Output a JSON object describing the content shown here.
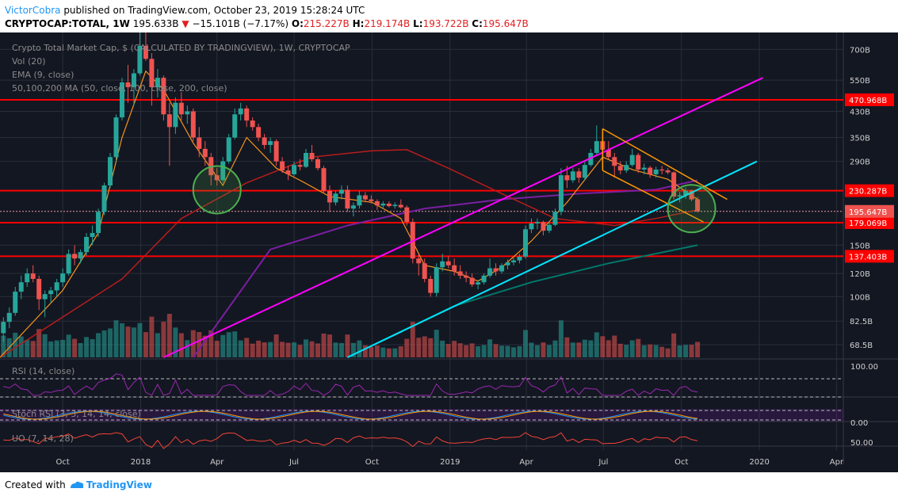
{
  "header": {
    "author": "VictorCobra",
    "published": "published on TradingView.com, October 23, 2019 15:28:24 UTC",
    "symbol": "CRYPTOCAP:TOTAL, 1W",
    "price": "195.633B",
    "change_arrow": "▼",
    "change": "−15.101B (−7.17%)",
    "o_label": "O:",
    "o_val": "215.227B",
    "h_label": "H:",
    "h_val": "219.174B",
    "l_label": "L:",
    "l_val": "193.722B",
    "c_label": "C:",
    "c_val": "195.647B"
  },
  "footer": {
    "created_with": "Created with",
    "brand": "TradingView"
  },
  "colors": {
    "background": "#131722",
    "up": "#26a69a",
    "down": "#ef5350",
    "ema": "#f7931a",
    "ma50": "#b71c1c",
    "ma100": "#7b1fa2",
    "ma200": "#00796b",
    "level": "#ff0000",
    "upper_trend": "#ff00ff",
    "lower_trend": "#00e5ff",
    "wedge": "#ff9800",
    "circle": "#4caf50"
  },
  "chart_data": [
    {
      "type": "candlestick",
      "title": "Crypto Total Market Cap, $ (CALCULATED BY TRADINGVIEW), 1W, CRYPTOCAP",
      "scale": "log",
      "ylim": [
        62,
        800
      ],
      "y_ticks": [
        "700B",
        "550B",
        "430B",
        "350B",
        "290B",
        "150B",
        "120B",
        "100B",
        "82.5B",
        "68.5B"
      ],
      "x_ticks": [
        "Oct",
        "2018",
        "Apr",
        "Jul",
        "Oct",
        "2019",
        "Apr",
        "Jul",
        "Oct",
        "2020",
        "Apr"
      ],
      "x_tick_dates": [
        "2017-10-01",
        "2018-01-01",
        "2018-04-01",
        "2018-07-01",
        "2018-10-01",
        "2019-01-01",
        "2019-04-01",
        "2019-07-01",
        "2019-10-01",
        "2020-01-01",
        "2020-04-01"
      ],
      "x_range": [
        "2017-07-19",
        "2020-04-09"
      ],
      "indicators": [
        "Vol (20)",
        "EMA (9, close)",
        "50,100,200 MA (50, close, 100, close, 200, close)"
      ],
      "horizontal_levels": [
        {
          "label": "470.968B",
          "value": 470.968
        },
        {
          "label": "230.287B",
          "value": 230.287
        },
        {
          "label": "179.069B",
          "value": 179.069
        },
        {
          "label": "137.403B",
          "value": 137.403
        }
      ],
      "last_price": {
        "label": "195.647B",
        "value": 195.647
      },
      "ema_points": [
        [
          "2017-07-19",
          62
        ],
        [
          "2017-10-01",
          105
        ],
        [
          "2017-11-12",
          165
        ],
        [
          "2017-12-10",
          350
        ],
        [
          "2018-01-07",
          590
        ],
        [
          "2018-01-28",
          510
        ],
        [
          "2018-03-04",
          335
        ],
        [
          "2018-04-08",
          240
        ],
        [
          "2018-05-06",
          350
        ],
        [
          "2018-06-10",
          275
        ],
        [
          "2018-07-08",
          250
        ],
        [
          "2018-08-12",
          220
        ],
        [
          "2018-10-01",
          210
        ],
        [
          "2018-11-04",
          185
        ],
        [
          "2018-12-02",
          128
        ],
        [
          "2019-01-06",
          122
        ],
        [
          "2019-02-03",
          113
        ],
        [
          "2019-03-03",
          126
        ],
        [
          "2019-04-07",
          155
        ],
        [
          "2019-05-19",
          210
        ],
        [
          "2019-06-30",
          300
        ],
        [
          "2019-08-04",
          272
        ],
        [
          "2019-09-15",
          252
        ],
        [
          "2019-10-20",
          215
        ]
      ],
      "ma50_points": [
        [
          "2017-07-19",
          62
        ],
        [
          "2017-12-10",
          115
        ],
        [
          "2018-02-18",
          185
        ],
        [
          "2018-05-06",
          245
        ],
        [
          "2018-07-22",
          300
        ],
        [
          "2018-09-30",
          315
        ],
        [
          "2018-11-11",
          318
        ],
        [
          "2018-12-30",
          275
        ],
        [
          "2019-03-03",
          225
        ],
        [
          "2019-05-05",
          185
        ],
        [
          "2019-07-14",
          175
        ],
        [
          "2019-09-01",
          185
        ],
        [
          "2019-10-20",
          198
        ]
      ],
      "ma100_points": [
        [
          "2018-03-04",
          62
        ],
        [
          "2018-06-03",
          145
        ],
        [
          "2018-09-02",
          175
        ],
        [
          "2018-12-02",
          200
        ],
        [
          "2019-03-03",
          215
        ],
        [
          "2019-06-02",
          225
        ],
        [
          "2019-09-01",
          232
        ],
        [
          "2019-10-20",
          250
        ]
      ],
      "ma200_points": [
        [
          "2018-09-02",
          62
        ],
        [
          "2018-11-04",
          76
        ],
        [
          "2019-01-06",
          93
        ],
        [
          "2019-04-07",
          112
        ],
        [
          "2019-07-07",
          130
        ],
        [
          "2019-10-20",
          150
        ]
      ],
      "trendlines": [
        {
          "name": "upper channel",
          "from": [
            "2018-01-28",
            62
          ],
          "to": [
            "2020-01-05",
            560
          ]
        },
        {
          "name": "lower channel",
          "from": [
            "2018-09-02",
            62
          ],
          "to": [
            "2019-12-29",
            290
          ]
        }
      ],
      "falling_wedge": {
        "upper": [
          [
            "2019-06-30",
            375
          ],
          [
            "2019-11-24",
            215
          ]
        ],
        "lower": [
          [
            "2019-06-30",
            270
          ],
          [
            "2019-10-27",
            180
          ]
        ]
      },
      "highlights": [
        {
          "center": [
            "2018-04-01",
            232
          ]
        },
        {
          "center": [
            "2019-10-13",
            200
          ]
        }
      ],
      "candles": [
        [
          "2017-07-23",
          75,
          85,
          70,
          82
        ],
        [
          "2017-07-30",
          82,
          92,
          78,
          88
        ],
        [
          "2017-08-06",
          88,
          108,
          86,
          104
        ],
        [
          "2017-08-13",
          104,
          118,
          98,
          112
        ],
        [
          "2017-08-20",
          112,
          125,
          108,
          120
        ],
        [
          "2017-08-27",
          120,
          128,
          112,
          115
        ],
        [
          "2017-09-03",
          115,
          118,
          90,
          98
        ],
        [
          "2017-09-10",
          98,
          105,
          85,
          102
        ],
        [
          "2017-09-17",
          102,
          108,
          95,
          105
        ],
        [
          "2017-09-24",
          105,
          115,
          100,
          112
        ],
        [
          "2017-10-01",
          112,
          125,
          108,
          120
        ],
        [
          "2017-10-08",
          120,
          145,
          118,
          140
        ],
        [
          "2017-10-15",
          140,
          150,
          128,
          135
        ],
        [
          "2017-10-22",
          135,
          145,
          130,
          142
        ],
        [
          "2017-10-29",
          142,
          165,
          138,
          160
        ],
        [
          "2017-11-05",
          160,
          175,
          150,
          165
        ],
        [
          "2017-11-12",
          165,
          200,
          160,
          195
        ],
        [
          "2017-11-19",
          195,
          245,
          190,
          240
        ],
        [
          "2017-11-26",
          240,
          310,
          235,
          300
        ],
        [
          "2017-12-03",
          300,
          420,
          290,
          410
        ],
        [
          "2017-12-10",
          410,
          560,
          400,
          540
        ],
        [
          "2017-12-17",
          540,
          620,
          460,
          520
        ],
        [
          "2017-12-24",
          520,
          600,
          450,
          580
        ],
        [
          "2017-12-31",
          580,
          800,
          570,
          720
        ],
        [
          "2018-01-07",
          720,
          810,
          640,
          650
        ],
        [
          "2018-01-14",
          650,
          680,
          450,
          520
        ],
        [
          "2018-01-21",
          520,
          600,
          480,
          560
        ],
        [
          "2018-01-28",
          560,
          570,
          400,
          420
        ],
        [
          "2018-02-04",
          420,
          460,
          280,
          380
        ],
        [
          "2018-02-11",
          380,
          480,
          360,
          460
        ],
        [
          "2018-02-18",
          460,
          500,
          400,
          420
        ],
        [
          "2018-02-25",
          420,
          450,
          390,
          430
        ],
        [
          "2018-03-04",
          430,
          440,
          340,
          350
        ],
        [
          "2018-03-11",
          350,
          380,
          300,
          320
        ],
        [
          "2018-03-18",
          320,
          340,
          280,
          300
        ],
        [
          "2018-03-25",
          300,
          310,
          240,
          260
        ],
        [
          "2018-04-01",
          260,
          275,
          240,
          250
        ],
        [
          "2018-04-08",
          250,
          300,
          245,
          290
        ],
        [
          "2018-04-15",
          290,
          360,
          285,
          350
        ],
        [
          "2018-04-22",
          350,
          440,
          345,
          420
        ],
        [
          "2018-04-29",
          420,
          460,
          400,
          440
        ],
        [
          "2018-05-06",
          440,
          450,
          380,
          400
        ],
        [
          "2018-05-13",
          400,
          410,
          370,
          380
        ],
        [
          "2018-05-20",
          380,
          390,
          340,
          350
        ],
        [
          "2018-05-27",
          350,
          360,
          320,
          330
        ],
        [
          "2018-06-03",
          330,
          350,
          310,
          340
        ],
        [
          "2018-06-10",
          340,
          345,
          280,
          290
        ],
        [
          "2018-06-17",
          290,
          300,
          265,
          270
        ],
        [
          "2018-06-24",
          270,
          280,
          250,
          262
        ],
        [
          "2018-07-01",
          262,
          290,
          258,
          282
        ],
        [
          "2018-07-08",
          282,
          295,
          270,
          278
        ],
        [
          "2018-07-15",
          278,
          320,
          275,
          310
        ],
        [
          "2018-07-22",
          310,
          330,
          290,
          295
        ],
        [
          "2018-07-29",
          295,
          300,
          270,
          275
        ],
        [
          "2018-08-05",
          275,
          280,
          225,
          230
        ],
        [
          "2018-08-12",
          230,
          240,
          195,
          210
        ],
        [
          "2018-08-19",
          210,
          230,
          205,
          225
        ],
        [
          "2018-08-26",
          225,
          240,
          215,
          232
        ],
        [
          "2018-09-02",
          232,
          240,
          195,
          200
        ],
        [
          "2018-09-09",
          200,
          210,
          188,
          205
        ],
        [
          "2018-09-16",
          205,
          230,
          200,
          222
        ],
        [
          "2018-09-23",
          222,
          228,
          210,
          215
        ],
        [
          "2018-09-30",
          215,
          222,
          208,
          212
        ],
        [
          "2018-10-07",
          212,
          215,
          198,
          205
        ],
        [
          "2018-10-14",
          205,
          212,
          200,
          208
        ],
        [
          "2018-10-21",
          208,
          212,
          202,
          204
        ],
        [
          "2018-10-28",
          204,
          210,
          200,
          206
        ],
        [
          "2018-11-04",
          206,
          215,
          200,
          202
        ],
        [
          "2018-11-11",
          202,
          205,
          175,
          180
        ],
        [
          "2018-11-18",
          180,
          185,
          130,
          135
        ],
        [
          "2018-11-25",
          135,
          140,
          118,
          130
        ],
        [
          "2018-12-02",
          130,
          135,
          112,
          115
        ],
        [
          "2018-12-09",
          115,
          118,
          100,
          103
        ],
        [
          "2018-12-16",
          103,
          130,
          100,
          126
        ],
        [
          "2018-12-23",
          126,
          140,
          122,
          132
        ],
        [
          "2018-12-30",
          132,
          138,
          125,
          128
        ],
        [
          "2019-01-06",
          128,
          135,
          118,
          122
        ],
        [
          "2019-01-13",
          122,
          128,
          115,
          118
        ],
        [
          "2019-01-20",
          118,
          122,
          112,
          116
        ],
        [
          "2019-01-27",
          116,
          120,
          108,
          110
        ],
        [
          "2019-02-03",
          110,
          114,
          106,
          112
        ],
        [
          "2019-02-10",
          112,
          120,
          110,
          118
        ],
        [
          "2019-02-17",
          118,
          135,
          116,
          125
        ],
        [
          "2019-02-24",
          125,
          130,
          118,
          122
        ],
        [
          "2019-03-03",
          122,
          130,
          120,
          128
        ],
        [
          "2019-03-10",
          128,
          134,
          124,
          131
        ],
        [
          "2019-03-17",
          131,
          136,
          128,
          133
        ],
        [
          "2019-03-24",
          133,
          140,
          130,
          137
        ],
        [
          "2019-03-31",
          137,
          175,
          135,
          170
        ],
        [
          "2019-04-07",
          170,
          185,
          165,
          178
        ],
        [
          "2019-04-14",
          178,
          185,
          170,
          180
        ],
        [
          "2019-04-21",
          180,
          182,
          162,
          168
        ],
        [
          "2019-04-28",
          168,
          180,
          165,
          176
        ],
        [
          "2019-05-05",
          176,
          200,
          174,
          195
        ],
        [
          "2019-05-12",
          195,
          275,
          190,
          260
        ],
        [
          "2019-05-19",
          260,
          280,
          235,
          250
        ],
        [
          "2019-05-26",
          250,
          275,
          245,
          268
        ],
        [
          "2019-06-02",
          268,
          275,
          245,
          255
        ],
        [
          "2019-06-09",
          255,
          290,
          250,
          282
        ],
        [
          "2019-06-16",
          282,
          320,
          278,
          310
        ],
        [
          "2019-06-23",
          310,
          385,
          305,
          340
        ],
        [
          "2019-06-30",
          340,
          350,
          290,
          318
        ],
        [
          "2019-07-07",
          318,
          340,
          295,
          300
        ],
        [
          "2019-07-14",
          300,
          310,
          255,
          280
        ],
        [
          "2019-07-21",
          280,
          290,
          262,
          270
        ],
        [
          "2019-07-28",
          270,
          290,
          265,
          282
        ],
        [
          "2019-08-04",
          282,
          320,
          278,
          305
        ],
        [
          "2019-08-11",
          305,
          310,
          265,
          272
        ],
        [
          "2019-08-18",
          272,
          285,
          262,
          276
        ],
        [
          "2019-08-25",
          276,
          280,
          255,
          262
        ],
        [
          "2019-09-01",
          262,
          278,
          255,
          272
        ],
        [
          "2019-09-08",
          272,
          280,
          262,
          270
        ],
        [
          "2019-09-15",
          270,
          275,
          262,
          266
        ],
        [
          "2019-09-22",
          266,
          268,
          215,
          220
        ],
        [
          "2019-09-29",
          220,
          228,
          210,
          222
        ],
        [
          "2019-10-06",
          222,
          236,
          216,
          230
        ],
        [
          "2019-10-13",
          230,
          232,
          212,
          215
        ],
        [
          "2019-10-20",
          215.227,
          219.174,
          193.722,
          195.647
        ]
      ]
    },
    {
      "type": "line",
      "title": "RSI (14, close)",
      "y_ticks": [
        "100.00"
      ],
      "ylim": [
        0,
        100
      ]
    },
    {
      "type": "line",
      "title": "Stoch RSI (3, 3, 14, 14, close)",
      "y_ticks": [
        "0.00"
      ],
      "ylim": [
        0,
        100
      ]
    },
    {
      "type": "line",
      "title": "UO (7, 14, 28)",
      "y_ticks": [
        "50.00"
      ],
      "ylim": [
        40,
        80
      ]
    }
  ]
}
